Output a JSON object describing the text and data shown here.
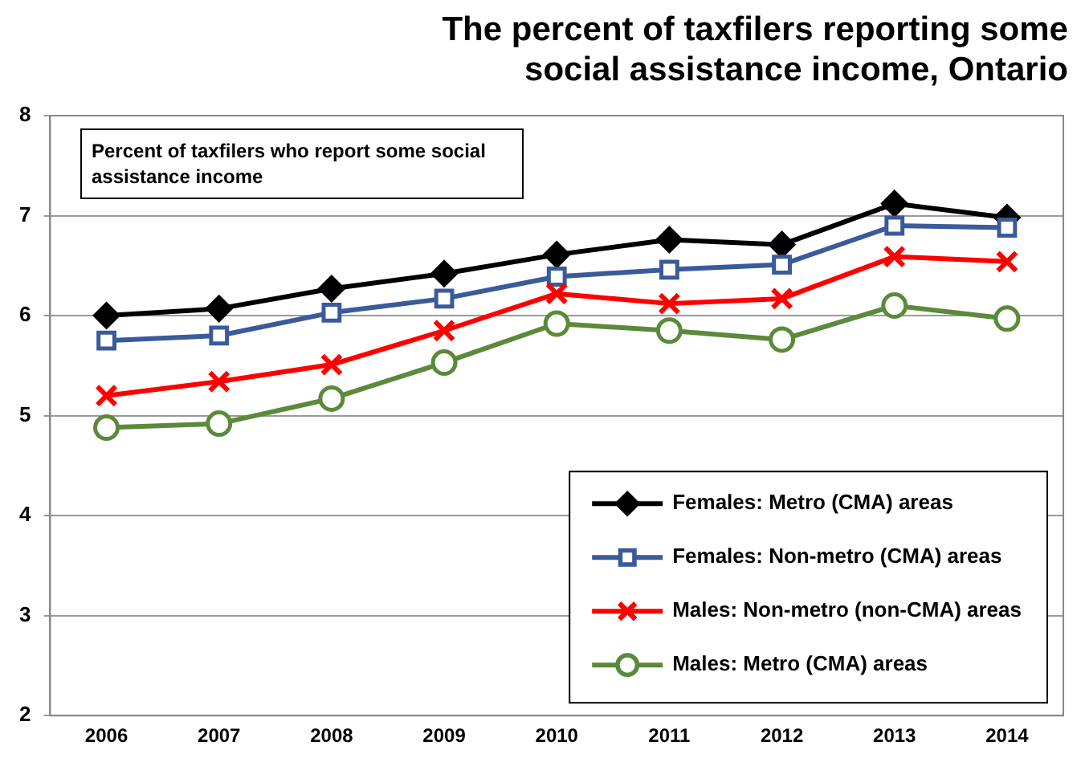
{
  "chart_data": {
    "type": "line",
    "title": "The percent of taxfilers reporting some social assistance income, Ontario",
    "annotations": [
      "Percent of taxfilers who report some social assistance income"
    ],
    "categories": [
      "2006",
      "2007",
      "2008",
      "2009",
      "2010",
      "2011",
      "2012",
      "2013",
      "2014"
    ],
    "ylim": [
      2,
      8
    ],
    "yticks": [
      2,
      3,
      4,
      5,
      6,
      7,
      8
    ],
    "grid": "y",
    "legend": "bottom right",
    "line_style": "solid",
    "series": [
      {
        "name": "Females: Metro (CMA) areas",
        "color": "#000000",
        "marker": "diamond",
        "values": [
          6.0,
          6.07,
          6.27,
          6.42,
          6.61,
          6.76,
          6.71,
          7.12,
          6.98
        ]
      },
      {
        "name": "Females: Non-metro (CMA) areas",
        "color": "#3a5a9a",
        "marker": "square",
        "values": [
          5.75,
          5.8,
          6.03,
          6.17,
          6.39,
          6.46,
          6.51,
          6.9,
          6.88
        ]
      },
      {
        "name": "Males: Non-metro (non-CMA) areas",
        "color": "#ff0000",
        "marker": "cross",
        "values": [
          5.2,
          5.34,
          5.51,
          5.85,
          6.22,
          6.12,
          6.17,
          6.59,
          6.54
        ]
      },
      {
        "name": "Males: Metro (CMA) areas",
        "color": "#5a8a3a",
        "marker": "circle",
        "values": [
          4.88,
          4.92,
          5.17,
          5.53,
          5.92,
          5.85,
          5.76,
          6.1,
          5.97
        ]
      }
    ]
  }
}
